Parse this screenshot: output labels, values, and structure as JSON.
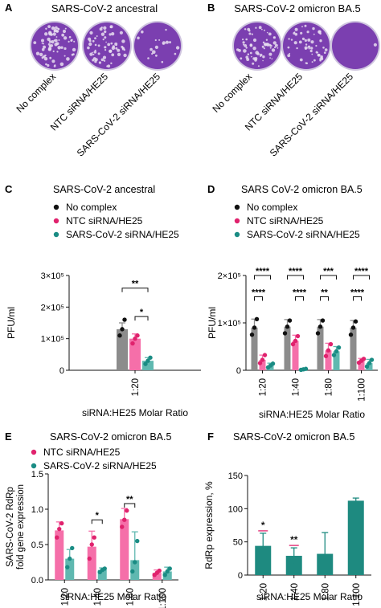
{
  "colors": {
    "grey": "#8c8c8c",
    "pink": "#f56fa9",
    "pink_dot": "#e0226d",
    "teal": "#5fb8b0",
    "teal_dot": "#1a8c84",
    "teal_bar": "#1e8a80",
    "black": "#111111",
    "plate_bg": "#7b3fb0",
    "plate_edge": "#cfc5df"
  },
  "panels": {
    "A": {
      "letter": "A",
      "title": "SARS-CoV-2 ancestral",
      "plates": [
        "No complex",
        "NTC siRNA/HE25",
        "SARS-CoV-2 siRNA/HE25"
      ],
      "plaque_density": [
        1.0,
        0.85,
        0.25
      ]
    },
    "B": {
      "letter": "B",
      "title": "SARS-CoV-2 omicron BA.5",
      "plates": [
        "No complex",
        "NTC siRNA/HE25",
        "SARS-CoV-2 siRNA/HE25"
      ],
      "plaque_density": [
        0.9,
        0.75,
        0.02
      ]
    }
  },
  "chart_data": [
    {
      "panel": "C",
      "type": "bar",
      "title": "SARS-CoV-2 ancestral",
      "ylabel": "PFU/ml",
      "xlabel": "siRNA:HE25 Molar Ratio",
      "ylim": [
        0,
        300000
      ],
      "yticks": [
        {
          "value": 0,
          "label": "0"
        },
        {
          "value": 100000,
          "label": "1×10⁵"
        },
        {
          "value": 200000,
          "label": "2×10⁵"
        },
        {
          "value": 300000,
          "label": "3×10⁵"
        }
      ],
      "legend": [
        "No complex",
        "NTC siRNA/HE25",
        "SARS-CoV-2 siRNA/HE25"
      ],
      "categories": [
        "1:20"
      ],
      "series": [
        {
          "name": "No complex",
          "color": "grey",
          "values": [
            130000
          ],
          "sd": [
            20000
          ],
          "points": [
            [
              110000,
              130000,
              160000
            ]
          ]
        },
        {
          "name": "NTC siRNA/HE25",
          "color": "pink",
          "values": [
            100000
          ],
          "sd": [
            15000
          ],
          "points": [
            [
              85000,
              100000,
              110000
            ]
          ]
        },
        {
          "name": "SARS-CoV-2 siRNA/HE25",
          "color": "teal",
          "values": [
            30000
          ],
          "sd": [
            10000
          ],
          "points": [
            [
              20000,
              30000,
              40000
            ]
          ]
        }
      ],
      "significance": [
        {
          "cat": 0,
          "from": 0,
          "to": 2,
          "label": "**",
          "level": 260000
        },
        {
          "cat": 0,
          "from": 1,
          "to": 2,
          "label": "*",
          "level": 170000
        }
      ]
    },
    {
      "panel": "D",
      "type": "bar",
      "title": "SARS CoV-2 omicron BA.5",
      "ylabel": "PFU/ml",
      "xlabel": "siRNA:HE25 Molar Ratio",
      "ylim": [
        0,
        200000
      ],
      "yticks": [
        {
          "value": 0,
          "label": "0"
        },
        {
          "value": 100000,
          "label": "1×10⁵"
        },
        {
          "value": 200000,
          "label": "2×10⁵"
        }
      ],
      "legend": [
        "No complex",
        "NTC siRNA/HE25",
        "SARS-CoV-2 siRNA/HE25"
      ],
      "categories": [
        "1:20",
        "1:40",
        "1:80",
        "1:100"
      ],
      "series": [
        {
          "name": "No complex",
          "color": "grey",
          "values": [
            90000,
            92000,
            92000,
            90000
          ],
          "sd": [
            18000,
            15000,
            15000,
            15000
          ],
          "points": [
            [
              75000,
              90000,
              108000
            ],
            [
              78000,
              92000,
              105000
            ],
            [
              78000,
              92000,
              105000
            ],
            [
              75000,
              90000,
              103000
            ]
          ]
        },
        {
          "name": "NTC siRNA/HE25",
          "color": "pink",
          "values": [
            22000,
            62000,
            42000,
            20000
          ],
          "sd": [
            10000,
            12000,
            15000,
            5000
          ],
          "points": [
            [
              15000,
              22000,
              32000
            ],
            [
              55000,
              62000,
              72000
            ],
            [
              30000,
              42000,
              55000
            ],
            [
              16000,
              20000,
              24000
            ]
          ]
        },
        {
          "name": "SARS-CoV-2 siRNA/HE25",
          "color": "teal",
          "values": [
            10000,
            2000,
            40000,
            15000
          ],
          "sd": [
            5000,
            1000,
            10000,
            8000
          ],
          "points": [
            [
              6000,
              10000,
              14000
            ],
            [
              1000,
              2000,
              3000
            ],
            [
              32000,
              40000,
              48000
            ],
            [
              8000,
              15000,
              22000
            ]
          ]
        }
      ],
      "significance": [
        {
          "cat": 0,
          "from": 0,
          "to": 2,
          "label": "****",
          "level": 200000
        },
        {
          "cat": 0,
          "from": 0,
          "to": 1,
          "label": "****",
          "level": 155000
        },
        {
          "cat": 1,
          "from": 0,
          "to": 2,
          "label": "****",
          "level": 200000
        },
        {
          "cat": 1,
          "from": 1,
          "to": 2,
          "label": "****",
          "level": 155000
        },
        {
          "cat": 2,
          "from": 0,
          "to": 2,
          "label": "***",
          "level": 200000
        },
        {
          "cat": 2,
          "from": 0,
          "to": 1,
          "label": "**",
          "level": 155000
        },
        {
          "cat": 3,
          "from": 0,
          "to": 2,
          "label": "****",
          "level": 200000
        },
        {
          "cat": 3,
          "from": 0,
          "to": 1,
          "label": "****",
          "level": 155000
        }
      ]
    },
    {
      "panel": "E",
      "type": "bar",
      "title": "SARS-CoV-2 omicron BA.5",
      "ylabel": "SARS-CoV-2 RdRp fold gene expression",
      "ylabel_lines": [
        "SARS-CoV-2 RdRp",
        "fold gene expression"
      ],
      "xlabel": "siRNA:HE25 Molar Ratio",
      "ylim": [
        0,
        1.5
      ],
      "yticks": [
        {
          "value": 0,
          "label": "0.0"
        },
        {
          "value": 0.5,
          "label": "0.5"
        },
        {
          "value": 1.0,
          "label": "1.0"
        },
        {
          "value": 1.5,
          "label": "1.5"
        }
      ],
      "legend": [
        "NTC siRNA/HE25",
        "SARS-CoV-2 siRNA/HE25"
      ],
      "categories": [
        "1:20",
        "1:40",
        "1:80",
        "1:100"
      ],
      "series": [
        {
          "name": "NTC siRNA/HE25",
          "color": "pink",
          "values": [
            0.7,
            0.47,
            0.86,
            0.1
          ],
          "sd": [
            0.12,
            0.22,
            0.15,
            0.04
          ],
          "points": [
            [
              0.6,
              0.72,
              0.8
            ],
            [
              0.3,
              0.5,
              0.6
            ],
            [
              0.75,
              0.85,
              0.98
            ],
            [
              0.07,
              0.1,
              0.13
            ]
          ]
        },
        {
          "name": "SARS-CoV-2 siRNA/HE25",
          "color": "teal",
          "values": [
            0.3,
            0.14,
            0.28,
            0.12
          ],
          "sd": [
            0.13,
            0.03,
            0.4,
            0.06
          ],
          "points": [
            [
              0.18,
              0.3,
              0.45
            ],
            [
              0.11,
              0.14,
              0.16
            ],
            [
              0.12,
              0.25,
              0.55
            ],
            [
              0.07,
              0.12,
              0.16
            ]
          ]
        }
      ],
      "significance": [
        {
          "cat": 1,
          "from": 0,
          "to": 1,
          "label": "*",
          "level": 0.85
        },
        {
          "cat": 2,
          "from": 0,
          "to": 1,
          "label": "**",
          "level": 1.08
        }
      ]
    },
    {
      "panel": "F",
      "type": "bar",
      "title": "SARS-CoV-2 omicron BA.5",
      "ylabel": "RdRp expression, %",
      "xlabel": "siRNA:HE25 Molar Ratio",
      "ylim": [
        0,
        150
      ],
      "yticks": [
        {
          "value": 0,
          "label": "0"
        },
        {
          "value": 50,
          "label": "50"
        },
        {
          "value": 100,
          "label": "100"
        },
        {
          "value": 150,
          "label": "150"
        }
      ],
      "legend": [],
      "categories": [
        "1:20",
        "1:40",
        "1:80",
        "1:100"
      ],
      "series": [
        {
          "name": "",
          "color": "teal_bar",
          "values": [
            44,
            29,
            32,
            112
          ],
          "sd": [
            19,
            12,
            32,
            4
          ],
          "points": []
        }
      ],
      "bar_stars": [
        {
          "cat": 0,
          "label": "*",
          "color": "pink_dot"
        },
        {
          "cat": 1,
          "label": "**",
          "color": "pink_dot"
        }
      ]
    }
  ]
}
